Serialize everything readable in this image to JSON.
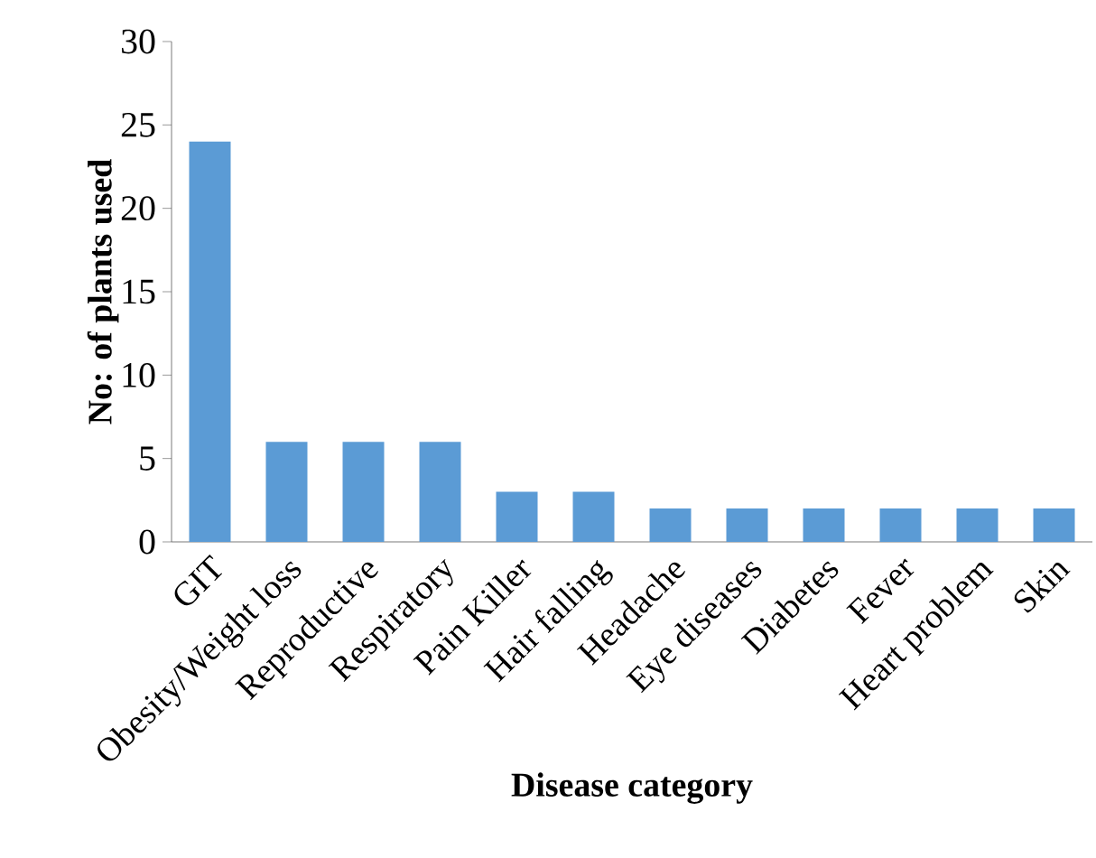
{
  "chart_data": {
    "type": "bar",
    "categories": [
      "GIT",
      "Obesity/Weight loss",
      "Reproductive",
      "Respiratory",
      "Pain Killer",
      "Hair falling",
      "Headache",
      "Eye diseases",
      "Diabetes",
      "Fever",
      "Heart problem",
      "Skin"
    ],
    "values": [
      24,
      6,
      6,
      6,
      3,
      3,
      2,
      2,
      2,
      2,
      2,
      2
    ],
    "color": "#5b9bd5",
    "xlabel": "Disease category",
    "ylabel": "No: of plants used",
    "ylim": [
      0,
      30
    ],
    "yticks": [
      0,
      5,
      10,
      15,
      20,
      25,
      30
    ]
  }
}
